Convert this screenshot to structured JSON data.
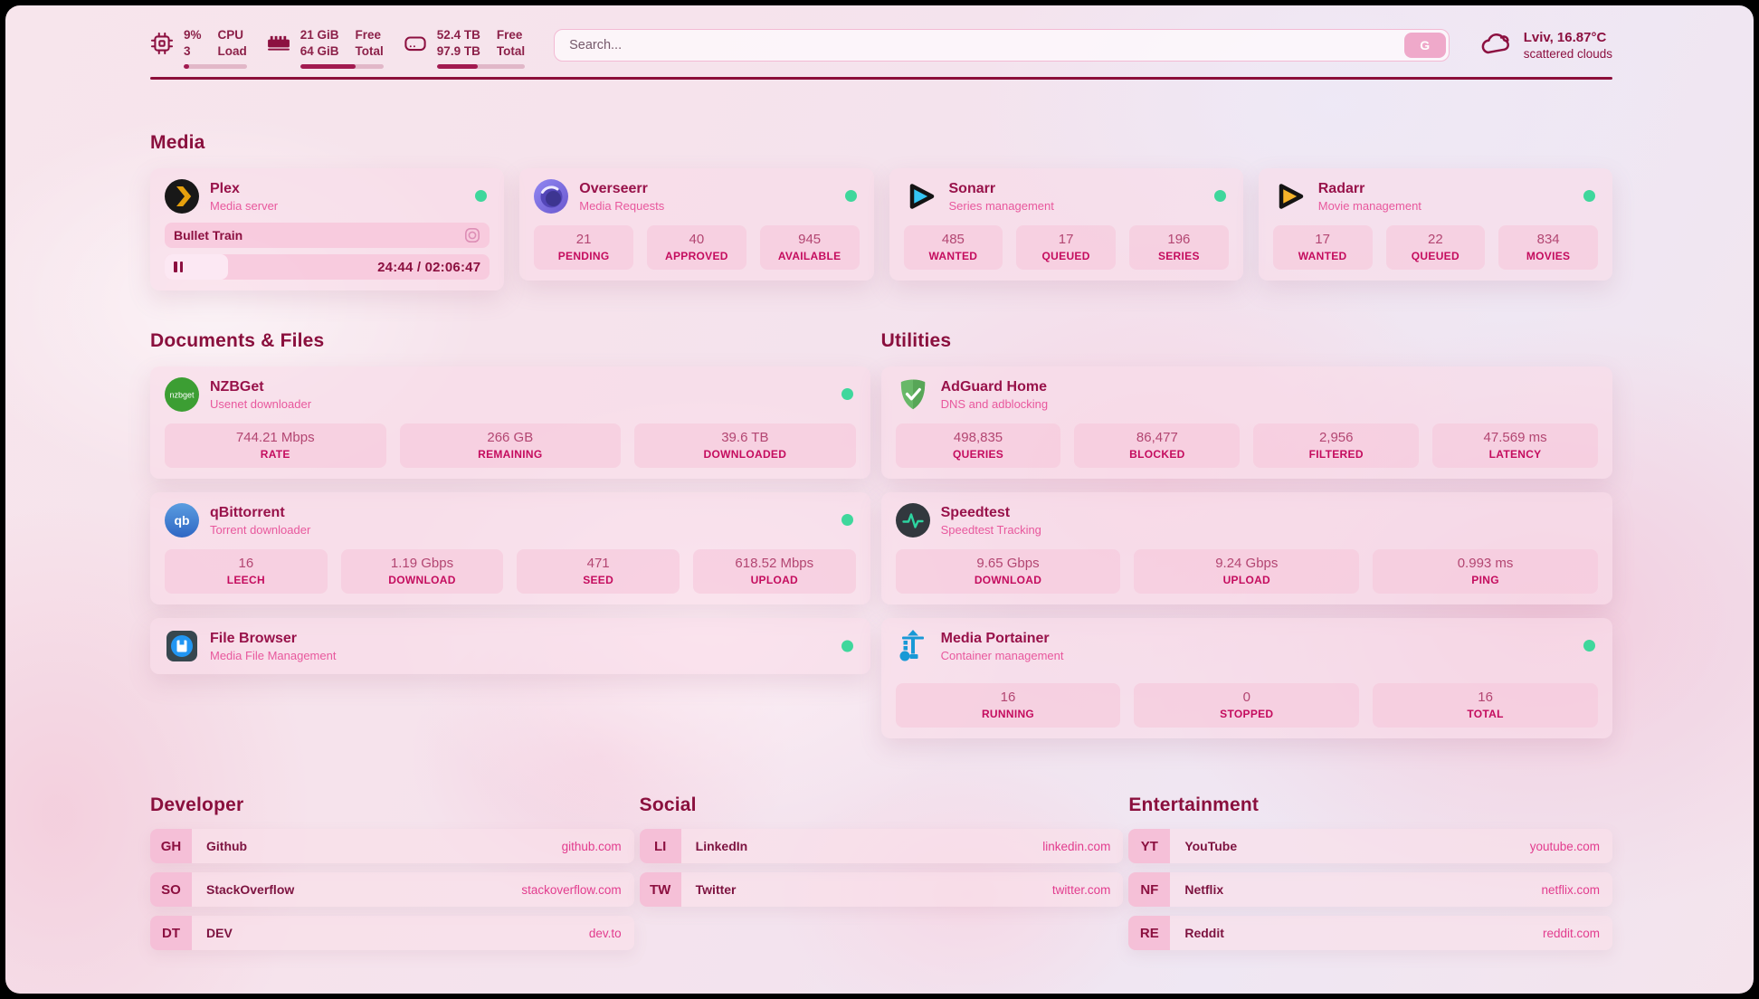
{
  "header": {
    "system": {
      "cpu": {
        "icon": "cpu-chip-icon",
        "values": [
          "9%",
          "3"
        ],
        "labels": [
          "CPU",
          "Load"
        ],
        "progress_pct": 9
      },
      "memory": {
        "icon": "ram-icon",
        "values": [
          "21 GiB",
          "64 GiB"
        ],
        "labels": [
          "Free",
          "Total"
        ],
        "progress_pct": 67
      },
      "disk": {
        "icon": "hard-drive-icon",
        "values": [
          "52.4 TB",
          "97.9 TB"
        ],
        "labels": [
          "Free",
          "Total"
        ],
        "progress_pct": 46
      }
    },
    "search": {
      "placeholder": "Search...",
      "engine_button": "G"
    },
    "weather": {
      "icon": "cloud-icon",
      "location_temp": "Lviv, 16.87°C",
      "condition": "scattered clouds"
    }
  },
  "media": {
    "heading": "Media",
    "plex": {
      "icon": "plex-icon",
      "title": "Plex",
      "subtitle": "Media server",
      "status": "online",
      "now_playing": {
        "title": "Bullet Train",
        "media_icon": "video-icon"
      },
      "player": {
        "time": "24:44 / 02:06:47",
        "progress_pct": 19.5
      }
    },
    "overseerr": {
      "icon": "overseerr-icon",
      "title": "Overseerr",
      "subtitle": "Media Requests",
      "status": "online",
      "stats": [
        {
          "value": "21",
          "label": "PENDING"
        },
        {
          "value": "40",
          "label": "APPROVED"
        },
        {
          "value": "945",
          "label": "AVAILABLE"
        }
      ]
    },
    "sonarr": {
      "icon": "sonarr-icon",
      "title": "Sonarr",
      "subtitle": "Series management",
      "status": "online",
      "stats": [
        {
          "value": "485",
          "label": "WANTED"
        },
        {
          "value": "17",
          "label": "QUEUED"
        },
        {
          "value": "196",
          "label": "SERIES"
        }
      ]
    },
    "radarr": {
      "icon": "radarr-icon",
      "title": "Radarr",
      "subtitle": "Movie management",
      "status": "online",
      "stats": [
        {
          "value": "17",
          "label": "WANTED"
        },
        {
          "value": "22",
          "label": "QUEUED"
        },
        {
          "value": "834",
          "label": "MOVIES"
        }
      ]
    }
  },
  "documents": {
    "heading": "Documents & Files",
    "nzbget": {
      "icon": "nzbget-icon",
      "title": "NZBGet",
      "subtitle": "Usenet downloader",
      "status": "online",
      "stats": [
        {
          "value": "744.21 Mbps",
          "label": "RATE"
        },
        {
          "value": "266 GB",
          "label": "REMAINING"
        },
        {
          "value": "39.6 TB",
          "label": "DOWNLOADED"
        }
      ]
    },
    "qbittorrent": {
      "icon": "qbittorrent-icon",
      "title": "qBittorrent",
      "subtitle": "Torrent downloader",
      "status": "online",
      "stats": [
        {
          "value": "16",
          "label": "LEECH"
        },
        {
          "value": "1.19 Gbps",
          "label": "DOWNLOAD"
        },
        {
          "value": "471",
          "label": "SEED"
        },
        {
          "value": "618.52 Mbps",
          "label": "UPLOAD"
        }
      ]
    },
    "filebrowser": {
      "icon": "file-browser-icon",
      "title": "File Browser",
      "subtitle": "Media File Management",
      "status": "online"
    }
  },
  "utilities": {
    "heading": "Utilities",
    "adguard": {
      "icon": "adguard-icon",
      "title": "AdGuard Home",
      "subtitle": "DNS and adblocking",
      "stats": [
        {
          "value": "498,835",
          "label": "QUERIES"
        },
        {
          "value": "86,477",
          "label": "BLOCKED"
        },
        {
          "value": "2,956",
          "label": "FILTERED"
        },
        {
          "value": "47.569 ms",
          "label": "LATENCY"
        }
      ]
    },
    "speedtest": {
      "icon": "speedtest-icon",
      "title": "Speedtest",
      "subtitle": "Speedtest Tracking",
      "stats": [
        {
          "value": "9.65 Gbps",
          "label": "DOWNLOAD"
        },
        {
          "value": "9.24 Gbps",
          "label": "UPLOAD"
        },
        {
          "value": "0.993 ms",
          "label": "PING"
        }
      ]
    },
    "portainer": {
      "icon": "portainer-icon",
      "title": "Media Portainer",
      "subtitle": "Container management",
      "status": "online",
      "stats": [
        {
          "value": "16",
          "label": "RUNNING"
        },
        {
          "value": "0",
          "label": "STOPPED"
        },
        {
          "value": "16",
          "label": "TOTAL"
        }
      ]
    }
  },
  "developer": {
    "heading": "Developer",
    "links": [
      {
        "abbr": "GH",
        "name": "Github",
        "url": "github.com"
      },
      {
        "abbr": "SO",
        "name": "StackOverflow",
        "url": "stackoverflow.com"
      },
      {
        "abbr": "DT",
        "name": "DEV",
        "url": "dev.to"
      }
    ]
  },
  "social": {
    "heading": "Social",
    "links": [
      {
        "abbr": "LI",
        "name": "LinkedIn",
        "url": "linkedin.com"
      },
      {
        "abbr": "TW",
        "name": "Twitter",
        "url": "twitter.com"
      }
    ]
  },
  "entertainment": {
    "heading": "Entertainment",
    "links": [
      {
        "abbr": "YT",
        "name": "YouTube",
        "url": "youtube.com"
      },
      {
        "abbr": "NF",
        "name": "Netflix",
        "url": "netflix.com"
      },
      {
        "abbr": "RE",
        "name": "Reddit",
        "url": "reddit.com"
      }
    ]
  },
  "colors": {
    "accent_maroon": "#8c1040",
    "subtitle_pink": "#e8589d",
    "status_online": "#3fd79c",
    "link_pink": "#e23c8e",
    "divider": "#8c0f3a"
  }
}
